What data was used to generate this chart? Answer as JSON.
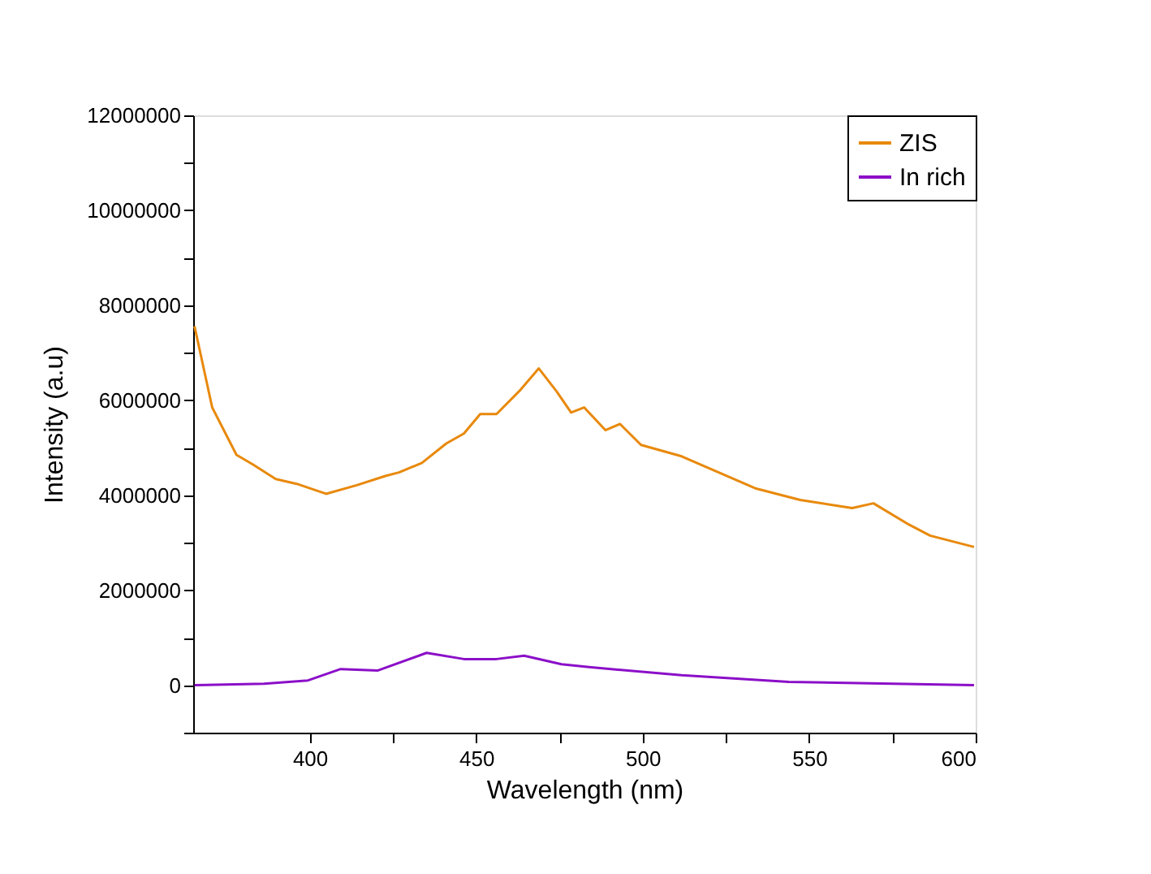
{
  "chart_data": {
    "type": "line",
    "xlabel": "Wavelength (nm)",
    "ylabel": "Intensity (a.u)",
    "xlim": [
      365,
      600
    ],
    "xticks": [
      400,
      {
        "value": 425,
        "label": null
      },
      450,
      {
        "value": 475,
        "label": null
      },
      500,
      {
        "value": 525,
        "label": null
      },
      550,
      {
        "value": 575,
        "label": null
      },
      600
    ],
    "ylim": [
      -1000000,
      12000000
    ],
    "yticks": [
      {
        "value": -1000000,
        "label": null
      },
      0,
      {
        "value": 1000000,
        "label": null
      },
      2000000,
      {
        "value": 3000000,
        "label": null
      },
      4000000,
      {
        "value": 5000000,
        "label": null
      },
      6000000,
      {
        "value": 7000000,
        "label": null
      },
      8000000,
      {
        "value": 9000000,
        "label": null
      },
      10000000,
      {
        "value": 11000000,
        "label": null
      },
      12000000
    ],
    "grid": false,
    "legend": "top right",
    "line_style": "solid",
    "marker": "none",
    "series": [
      {
        "name": "ZIS",
        "color": "#e8890c",
        "x": [
          365.4,
          370.7,
          378.0,
          382.9,
          389.8,
          396.1,
          404.9,
          414.1,
          422.9,
          426.8,
          433.7,
          441.0,
          446.3,
          451.2,
          456.1,
          462.9,
          468.8,
          474.1,
          478.5,
          482.4,
          488.8,
          493.2,
          499.5,
          511.7,
          534.1,
          547.3,
          562.9,
          569.3,
          580.0,
          586.3,
          599.5
        ],
        "values": [
          7560000,
          5850000,
          4850000,
          4650000,
          4340000,
          4240000,
          4030000,
          4210000,
          4410000,
          4480000,
          4680000,
          5090000,
          5300000,
          5710000,
          5710000,
          6190000,
          6670000,
          6190000,
          5740000,
          5850000,
          5370000,
          5500000,
          5060000,
          4820000,
          4140000,
          3900000,
          3730000,
          3830000,
          3380000,
          3150000,
          2910000
        ]
      },
      {
        "name": "In rich",
        "color": "#8b0fc8",
        "x": [
          365.4,
          386.3,
          399.5,
          409.3,
          420.5,
          435.1,
          446.3,
          456.1,
          464.4,
          475.6,
          483.9,
          511.7,
          543.9,
          599.5
        ],
        "values": [
          0,
          30000,
          100000,
          340000,
          310000,
          680000,
          550000,
          550000,
          620000,
          440000,
          380000,
          210000,
          70000,
          0
        ]
      }
    ]
  }
}
